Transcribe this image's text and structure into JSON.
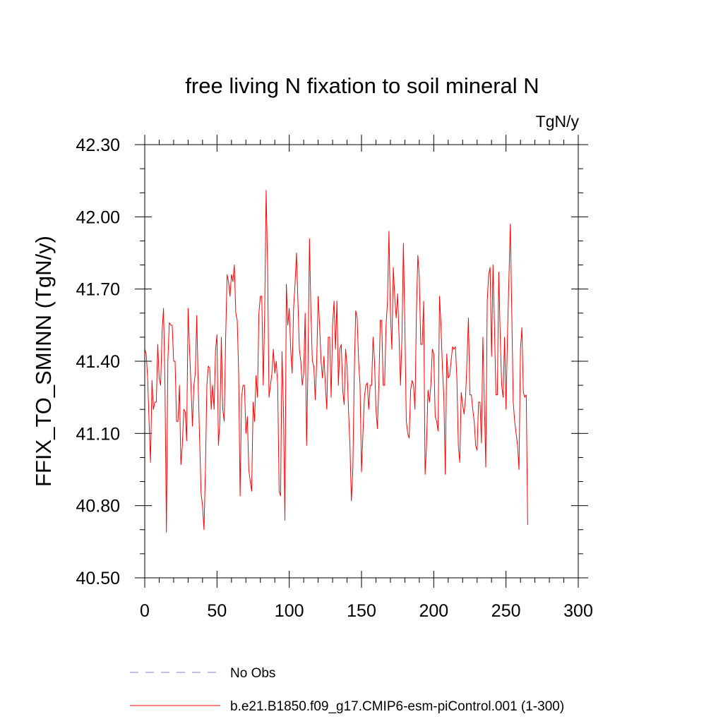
{
  "chart_data": {
    "type": "line",
    "title": "free living N fixation to soil mineral N",
    "units_label": "TgN/y",
    "ylabel": "FFIX_TO_SMINN  (TgN/y)",
    "xlabel": "",
    "xlim": [
      0,
      300
    ],
    "ylim": [
      40.5,
      42.3
    ],
    "x_ticks": [
      0,
      50,
      100,
      150,
      200,
      250,
      300
    ],
    "x_tick_labels": [
      "0",
      "50",
      "100",
      "150",
      "200",
      "250",
      "300"
    ],
    "y_ticks": [
      40.5,
      40.8,
      41.1,
      41.4,
      41.7,
      42.0,
      42.3
    ],
    "y_tick_labels": [
      "40.50",
      "40.80",
      "41.10",
      "41.40",
      "41.70",
      "42.00",
      "42.30"
    ],
    "grid": false,
    "legend_position": "bottom",
    "series": [
      {
        "name": "No Obs",
        "color": "#8080c0",
        "dash": "dashed",
        "values": []
      },
      {
        "name": "b.e21.B1850.f09_g17.CMIP6-esm-piControl.001 (1-300)",
        "color": "#ff0000",
        "dash": "solid",
        "x_start": 0,
        "values": [
          41.45,
          41.43,
          41.33,
          41.15,
          40.98,
          41.32,
          41.2,
          41.23,
          41.23,
          41.47,
          41.33,
          41.3,
          41.52,
          41.62,
          41.3,
          40.69,
          41.4,
          41.56,
          41.55,
          41.55,
          41.4,
          41.4,
          41.15,
          41.15,
          41.3,
          40.97,
          41.05,
          41.2,
          41.19,
          41.07,
          41.62,
          41.45,
          41.3,
          41.13,
          41.3,
          41.35,
          41.59,
          41.3,
          41.07,
          40.85,
          40.8,
          40.7,
          40.95,
          41.3,
          41.38,
          41.37,
          41.2,
          41.3,
          41.2,
          41.45,
          41.51,
          41.05,
          41.15,
          41.5,
          41.2,
          41.15,
          41.5,
          41.76,
          41.73,
          41.67,
          41.76,
          41.73,
          41.8,
          41.6,
          41.57,
          41.35,
          40.84,
          41.25,
          41.3,
          41.3,
          41.1,
          41.17,
          40.95,
          40.9,
          40.86,
          41.23,
          41.15,
          41.34,
          41.25,
          41.6,
          41.67,
          41.67,
          41.3,
          41.6,
          42.11,
          41.8,
          41.25,
          41.3,
          41.35,
          41.45,
          41.35,
          41.4,
          41.3,
          40.86,
          40.84,
          41.44,
          41.2,
          40.74,
          41.72,
          41.55,
          41.62,
          41.45,
          41.35,
          41.62,
          41.72,
          41.85,
          41.65,
          41.45,
          41.4,
          41.3,
          41.35,
          41.6,
          41.05,
          41.4,
          41.91,
          41.6,
          41.4,
          41.38,
          41.24,
          41.4,
          41.67,
          41.55,
          41.4,
          41.33,
          41.42,
          41.3,
          41.2,
          41.5,
          41.5,
          41.25,
          41.55,
          41.65,
          41.45,
          41.65,
          41.3,
          41.45,
          41.47,
          41.28,
          41.22,
          41.45,
          41.38,
          41.2,
          41.05,
          40.82,
          40.95,
          41.35,
          41.61,
          41.58,
          41.4,
          41.3,
          40.94,
          41.1,
          41.25,
          41.3,
          41.31,
          41.2,
          41.3,
          41.3,
          41.5,
          41.4,
          41.2,
          41.12,
          41.3,
          41.57,
          41.57,
          41.3,
          41.3,
          41.55,
          41.65,
          41.94,
          41.6,
          41.45,
          41.79,
          41.67,
          41.58,
          41.68,
          41.5,
          41.3,
          41.5,
          41.89,
          41.55,
          41.15,
          41.1,
          41.08,
          41.28,
          41.32,
          41.3,
          41.2,
          41.6,
          41.84,
          41.75,
          41.47,
          41.47,
          41.65,
          40.93,
          41.05,
          41.28,
          41.23,
          41.3,
          41.45,
          41.43,
          41.17,
          41.15,
          41.11,
          41.67,
          41.55,
          41.37,
          41.25,
          40.93,
          41.43,
          41.33,
          41.34,
          41.4,
          41.46,
          41.45,
          41.46,
          41.33,
          41.05,
          40.98,
          41.27,
          41.22,
          41.18,
          41.25,
          41.4,
          41.58,
          41.26,
          41.26,
          41.2,
          41.15,
          41.05,
          41.03,
          41.23,
          41.23,
          41.06,
          41.5,
          41.23,
          40.96,
          41.65,
          41.76,
          41.79,
          41.42,
          41.8,
          41.55,
          41.26,
          41.26,
          41.77,
          41.5,
          41.3,
          41.25,
          41.5,
          41.2,
          41.5,
          41.74,
          41.97,
          41.6,
          41.23,
          41.15,
          41.1,
          41.05,
          40.95,
          41.45,
          41.54,
          41.27,
          41.25,
          41.26,
          40.72
        ]
      }
    ]
  }
}
